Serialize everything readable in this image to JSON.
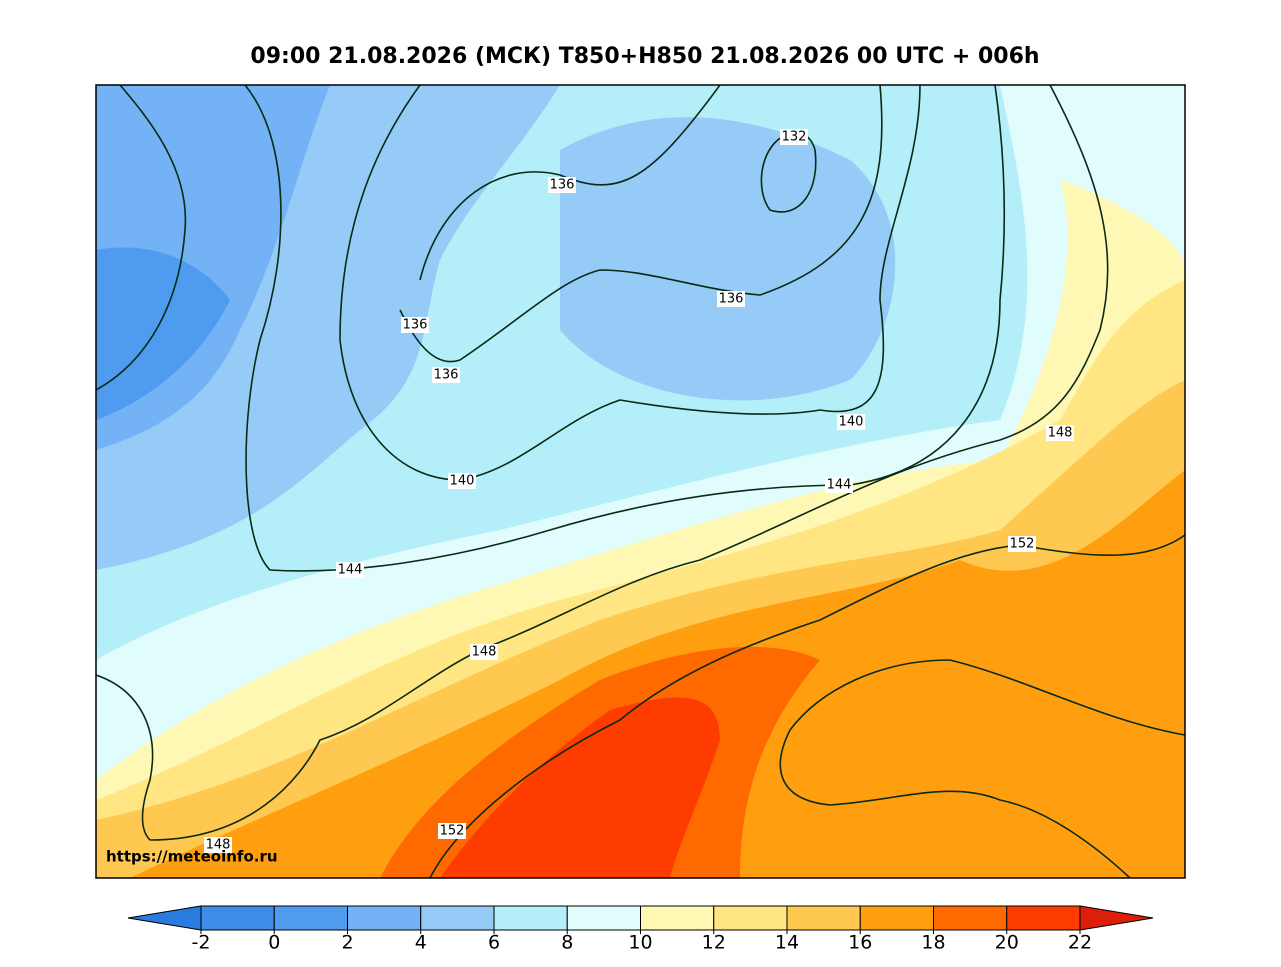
{
  "title": "09:00 21.08.2026 (МСК) T850+H850 21.08.2026 00 UTC + 006h",
  "watermark": "https://meteoinfo.ru",
  "contour_labels": [
    "132",
    "136",
    "136",
    "136",
    "136",
    "140",
    "140",
    "144",
    "144",
    "148",
    "148",
    "148",
    "152",
    "152"
  ],
  "colorbar": {
    "ticks": [
      -2,
      0,
      2,
      4,
      6,
      8,
      10,
      12,
      14,
      16,
      18,
      20,
      22
    ],
    "under_color": "#2a7be0",
    "over_color": "#dc1e0a",
    "colors": [
      "#3d8ce8",
      "#4e9bf0",
      "#72b2f5",
      "#96cbf8",
      "#b4eef8",
      "#e0fcfc",
      "#fff8b4",
      "#ffe682",
      "#ffc850",
      "#ff9f10",
      "#ff6a00",
      "#ff3c00"
    ]
  }
}
